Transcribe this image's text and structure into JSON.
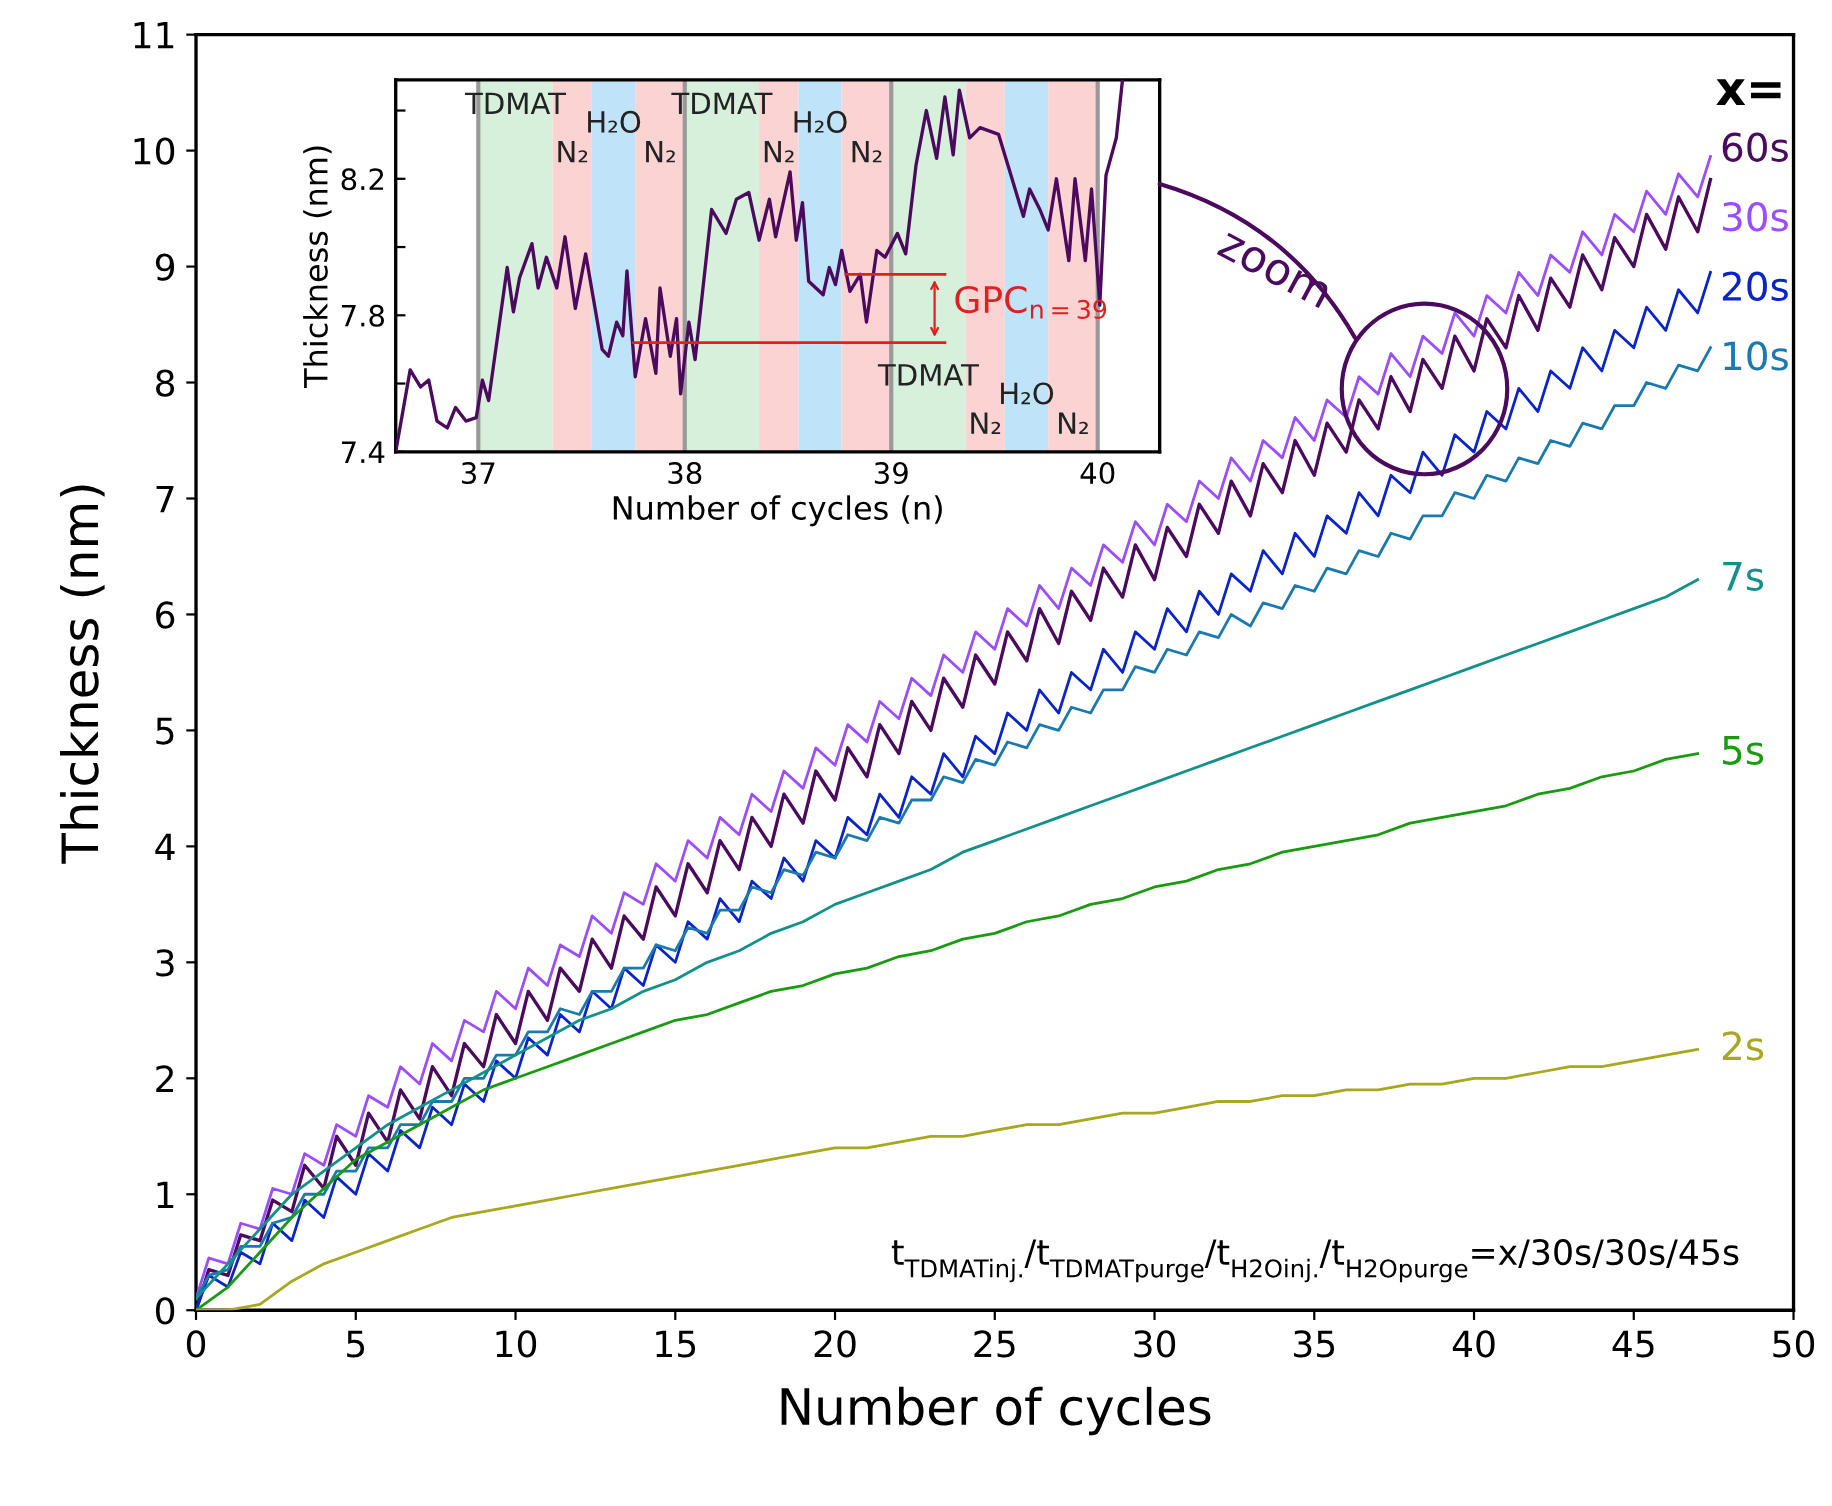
{
  "chart_data": [
    {
      "type": "line",
      "xlabel": "Number of cycles",
      "ylabel": "Thickness (nm)",
      "xlim": [
        0,
        50
      ],
      "ylim": [
        0,
        11
      ],
      "xticks": [
        0,
        5,
        10,
        15,
        20,
        25,
        30,
        35,
        40,
        45,
        50
      ],
      "yticks": [
        0,
        1,
        2,
        3,
        4,
        5,
        6,
        7,
        8,
        9,
        10,
        11
      ],
      "legend": false,
      "grid": false,
      "annotations": [
        "x=",
        "t$_{TDMATinj.}$/t$_{TDMATpurge}$/t$_{H2Oinj.}$/t$_{H2Opurge}$=x/30s/30s/45s",
        "zoom"
      ],
      "series": [
        {
          "name": "60s",
          "color": "#4b0a5e",
          "x": [
            0,
            0.4,
            1,
            1.4,
            2,
            2.4,
            3,
            3.4,
            4,
            4.4,
            5,
            5.4,
            6,
            6.4,
            7,
            7.4,
            8,
            8.4,
            9,
            9.4,
            10,
            10.4,
            11,
            11.4,
            12,
            12.4,
            13,
            13.4,
            14,
            14.4,
            15,
            15.4,
            16,
            16.4,
            17,
            17.4,
            18,
            18.4,
            19,
            19.4,
            20,
            20.4,
            21,
            21.4,
            22,
            22.4,
            23,
            23.4,
            24,
            24.4,
            25,
            25.4,
            26,
            26.4,
            27,
            27.4,
            28,
            28.4,
            29,
            29.4,
            30,
            30.4,
            31,
            31.4,
            32,
            32.4,
            33,
            33.4,
            34,
            34.4,
            35,
            35.4,
            36,
            36.4,
            37,
            37.4,
            38,
            38.4,
            39,
            39.4,
            40,
            40.4,
            41,
            41.4,
            42,
            42.4,
            43,
            43.4,
            44,
            44.4,
            45,
            45.4,
            46,
            46.4,
            47,
            47.4
          ],
          "values": [
            0,
            0.35,
            0.3,
            0.65,
            0.6,
            0.95,
            0.85,
            1.25,
            1.05,
            1.5,
            1.25,
            1.7,
            1.45,
            1.9,
            1.65,
            2.1,
            1.85,
            2.3,
            2.1,
            2.55,
            2.3,
            2.75,
            2.5,
            2.95,
            2.75,
            3.2,
            2.95,
            3.4,
            3.2,
            3.65,
            3.4,
            3.85,
            3.6,
            4.05,
            3.8,
            4.25,
            4.0,
            4.45,
            4.2,
            4.65,
            4.4,
            4.85,
            4.6,
            5.05,
            4.8,
            5.25,
            5.0,
            5.45,
            5.2,
            5.65,
            5.4,
            5.85,
            5.6,
            6.05,
            5.75,
            6.2,
            5.95,
            6.4,
            6.15,
            6.6,
            6.3,
            6.75,
            6.5,
            6.95,
            6.7,
            7.15,
            6.85,
            7.3,
            7.05,
            7.5,
            7.2,
            7.65,
            7.4,
            7.85,
            7.6,
            8.05,
            7.75,
            8.2,
            7.95,
            8.4,
            8.1,
            8.55,
            8.3,
            8.75,
            8.45,
            8.9,
            8.65,
            9.1,
            8.8,
            9.25,
            9.0,
            9.45,
            9.15,
            9.6,
            9.3,
            9.75
          ]
        },
        {
          "name": "30s",
          "color": "#9b4dff",
          "x": [
            0,
            0.4,
            1,
            1.4,
            2,
            2.4,
            3,
            3.4,
            4,
            4.4,
            5,
            5.4,
            6,
            6.4,
            7,
            7.4,
            8,
            8.4,
            9,
            9.4,
            10,
            10.4,
            11,
            11.4,
            12,
            12.4,
            13,
            13.4,
            14,
            14.4,
            15,
            15.4,
            16,
            16.4,
            17,
            17.4,
            18,
            18.4,
            19,
            19.4,
            20,
            20.4,
            21,
            21.4,
            22,
            22.4,
            23,
            23.4,
            24,
            24.4,
            25,
            25.4,
            26,
            26.4,
            27,
            27.4,
            28,
            28.4,
            29,
            29.4,
            30,
            30.4,
            31,
            31.4,
            32,
            32.4,
            33,
            33.4,
            34,
            34.4,
            35,
            35.4,
            36,
            36.4,
            37,
            37.4,
            38,
            38.4,
            39,
            39.4,
            40,
            40.4,
            41,
            41.4,
            42,
            42.4,
            43,
            43.4,
            44,
            44.4,
            45,
            45.4,
            46,
            46.4,
            47,
            47.4
          ],
          "values": [
            0.1,
            0.45,
            0.4,
            0.75,
            0.7,
            1.05,
            1.0,
            1.35,
            1.25,
            1.6,
            1.5,
            1.85,
            1.75,
            2.1,
            1.95,
            2.3,
            2.15,
            2.5,
            2.4,
            2.75,
            2.6,
            2.95,
            2.8,
            3.15,
            3.05,
            3.4,
            3.25,
            3.6,
            3.5,
            3.85,
            3.7,
            4.05,
            3.9,
            4.25,
            4.1,
            4.45,
            4.3,
            4.65,
            4.5,
            4.85,
            4.7,
            5.05,
            4.9,
            5.25,
            5.1,
            5.45,
            5.3,
            5.65,
            5.5,
            5.85,
            5.7,
            6.05,
            5.9,
            6.25,
            6.05,
            6.4,
            6.25,
            6.6,
            6.45,
            6.8,
            6.6,
            6.95,
            6.8,
            7.15,
            7.0,
            7.35,
            7.15,
            7.5,
            7.35,
            7.7,
            7.5,
            7.85,
            7.7,
            8.05,
            7.9,
            8.25,
            8.05,
            8.4,
            8.25,
            8.6,
            8.4,
            8.75,
            8.6,
            8.95,
            8.75,
            9.1,
            8.95,
            9.3,
            9.1,
            9.45,
            9.3,
            9.65,
            9.45,
            9.8,
            9.6,
            9.95
          ]
        },
        {
          "name": "20s",
          "color": "#0a24c8",
          "x": [
            0,
            0.4,
            1,
            1.4,
            2,
            2.4,
            3,
            3.4,
            4,
            4.4,
            5,
            5.4,
            6,
            6.4,
            7,
            7.4,
            8,
            8.4,
            9,
            9.4,
            10,
            10.4,
            11,
            11.4,
            12,
            12.4,
            13,
            13.4,
            14,
            14.4,
            15,
            15.4,
            16,
            16.4,
            17,
            17.4,
            18,
            18.4,
            19,
            19.4,
            20,
            20.4,
            21,
            21.4,
            22,
            22.4,
            23,
            23.4,
            24,
            24.4,
            25,
            25.4,
            26,
            26.4,
            27,
            27.4,
            28,
            28.4,
            29,
            29.4,
            30,
            30.4,
            31,
            31.4,
            32,
            32.4,
            33,
            33.4,
            34,
            34.4,
            35,
            35.4,
            36,
            36.4,
            37,
            37.4,
            38,
            38.4,
            39,
            39.4,
            40,
            40.4,
            41,
            41.4,
            42,
            42.4,
            43,
            43.4,
            44,
            44.4,
            45,
            45.4,
            46,
            46.4,
            47,
            47.4
          ],
          "values": [
            0,
            0.3,
            0.2,
            0.5,
            0.4,
            0.75,
            0.6,
            0.95,
            0.8,
            1.15,
            1.0,
            1.35,
            1.2,
            1.55,
            1.4,
            1.75,
            1.6,
            1.95,
            1.8,
            2.15,
            2.0,
            2.35,
            2.2,
            2.55,
            2.4,
            2.75,
            2.6,
            2.95,
            2.8,
            3.15,
            3.0,
            3.35,
            3.2,
            3.55,
            3.35,
            3.7,
            3.55,
            3.9,
            3.7,
            4.05,
            3.9,
            4.25,
            4.1,
            4.45,
            4.25,
            4.6,
            4.45,
            4.8,
            4.6,
            4.95,
            4.8,
            5.15,
            5.0,
            5.35,
            5.15,
            5.5,
            5.35,
            5.7,
            5.5,
            5.85,
            5.7,
            6.05,
            5.85,
            6.2,
            6.0,
            6.35,
            6.2,
            6.55,
            6.35,
            6.7,
            6.5,
            6.85,
            6.7,
            7.05,
            6.85,
            7.2,
            7.05,
            7.4,
            7.2,
            7.55,
            7.4,
            7.75,
            7.6,
            7.95,
            7.75,
            8.1,
            7.95,
            8.3,
            8.1,
            8.45,
            8.3,
            8.65,
            8.45,
            8.8,
            8.6,
            8.95
          ]
        },
        {
          "name": "10s",
          "color": "#1a7ab0",
          "x": [
            0,
            0.4,
            1,
            1.4,
            2,
            2.4,
            3,
            3.4,
            4,
            4.4,
            5,
            5.4,
            6,
            6.4,
            7,
            7.4,
            8,
            8.4,
            9,
            9.4,
            10,
            10.4,
            11,
            11.4,
            12,
            12.4,
            13,
            13.4,
            14,
            14.4,
            15,
            15.4,
            16,
            16.4,
            17,
            17.4,
            18,
            18.4,
            19,
            19.4,
            20,
            20.4,
            21,
            21.4,
            22,
            22.4,
            23,
            23.4,
            24,
            24.4,
            25,
            25.4,
            26,
            26.4,
            27,
            27.4,
            28,
            28.4,
            29,
            29.4,
            30,
            30.4,
            31,
            31.4,
            32,
            32.4,
            33,
            33.4,
            34,
            34.4,
            35,
            35.4,
            36,
            36.4,
            37,
            37.4,
            38,
            38.4,
            39,
            39.4,
            40,
            40.4,
            41,
            41.4,
            42,
            42.4,
            43,
            43.4,
            44,
            44.4,
            45,
            45.4,
            46,
            46.4,
            47,
            47.4
          ],
          "values": [
            0.1,
            0.3,
            0.35,
            0.55,
            0.55,
            0.75,
            0.8,
            1.0,
            1.0,
            1.2,
            1.2,
            1.4,
            1.4,
            1.6,
            1.6,
            1.8,
            1.8,
            2.0,
            2.0,
            2.2,
            2.2,
            2.4,
            2.4,
            2.6,
            2.55,
            2.75,
            2.75,
            2.95,
            2.95,
            3.15,
            3.1,
            3.3,
            3.25,
            3.45,
            3.45,
            3.65,
            3.6,
            3.8,
            3.75,
            3.95,
            3.9,
            4.1,
            4.05,
            4.25,
            4.2,
            4.4,
            4.4,
            4.6,
            4.55,
            4.75,
            4.7,
            4.9,
            4.85,
            5.05,
            5.0,
            5.2,
            5.15,
            5.35,
            5.35,
            5.55,
            5.5,
            5.7,
            5.65,
            5.85,
            5.8,
            6.0,
            5.9,
            6.1,
            6.05,
            6.25,
            6.2,
            6.4,
            6.35,
            6.55,
            6.5,
            6.7,
            6.65,
            6.85,
            6.85,
            7.05,
            7.0,
            7.2,
            7.15,
            7.35,
            7.3,
            7.5,
            7.45,
            7.65,
            7.6,
            7.8,
            7.8,
            8.0,
            7.95,
            8.15,
            8.1,
            8.3
          ]
        },
        {
          "name": "7s",
          "color": "#12908a",
          "x": [
            0,
            1,
            2,
            3,
            4,
            5,
            6,
            7,
            8,
            9,
            10,
            11,
            12,
            13,
            14,
            15,
            16,
            17,
            18,
            19,
            20,
            21,
            22,
            23,
            24,
            25,
            26,
            27,
            28,
            29,
            30,
            31,
            32,
            33,
            34,
            35,
            36,
            37,
            38,
            39,
            40,
            41,
            42,
            43,
            44,
            45,
            46,
            47
          ],
          "values": [
            0.1,
            0.4,
            0.7,
            1.0,
            1.2,
            1.4,
            1.6,
            1.75,
            1.9,
            2.05,
            2.2,
            2.35,
            2.5,
            2.6,
            2.75,
            2.85,
            3.0,
            3.1,
            3.25,
            3.35,
            3.5,
            3.6,
            3.7,
            3.8,
            3.95,
            4.05,
            4.15,
            4.25,
            4.35,
            4.45,
            4.55,
            4.65,
            4.75,
            4.85,
            4.95,
            5.05,
            5.15,
            5.25,
            5.35,
            5.45,
            5.55,
            5.65,
            5.75,
            5.85,
            5.95,
            6.05,
            6.15,
            6.3
          ]
        },
        {
          "name": "5s",
          "color": "#1a9a10",
          "x": [
            0,
            1,
            2,
            3,
            4,
            5,
            6,
            7,
            8,
            9,
            10,
            11,
            12,
            13,
            14,
            15,
            16,
            17,
            18,
            19,
            20,
            21,
            22,
            23,
            24,
            25,
            26,
            27,
            28,
            29,
            30,
            31,
            32,
            33,
            34,
            35,
            36,
            37,
            38,
            39,
            40,
            41,
            42,
            43,
            44,
            45,
            46,
            47
          ],
          "values": [
            0,
            0.2,
            0.5,
            0.8,
            1.05,
            1.3,
            1.45,
            1.6,
            1.75,
            1.9,
            2.0,
            2.1,
            2.2,
            2.3,
            2.4,
            2.5,
            2.55,
            2.65,
            2.75,
            2.8,
            2.9,
            2.95,
            3.05,
            3.1,
            3.2,
            3.25,
            3.35,
            3.4,
            3.5,
            3.55,
            3.65,
            3.7,
            3.8,
            3.85,
            3.95,
            4.0,
            4.05,
            4.1,
            4.2,
            4.25,
            4.3,
            4.35,
            4.45,
            4.5,
            4.6,
            4.65,
            4.75,
            4.8
          ]
        },
        {
          "name": "2s",
          "color": "#a8a820",
          "x": [
            0,
            1,
            2,
            3,
            4,
            5,
            6,
            7,
            8,
            9,
            10,
            11,
            12,
            13,
            14,
            15,
            16,
            17,
            18,
            19,
            20,
            21,
            22,
            23,
            24,
            25,
            26,
            27,
            28,
            29,
            30,
            31,
            32,
            33,
            34,
            35,
            36,
            37,
            38,
            39,
            40,
            41,
            42,
            43,
            44,
            45,
            46,
            47
          ],
          "values": [
            0,
            0,
            0.05,
            0.25,
            0.4,
            0.5,
            0.6,
            0.7,
            0.8,
            0.85,
            0.9,
            0.95,
            1.0,
            1.05,
            1.1,
            1.15,
            1.2,
            1.25,
            1.3,
            1.35,
            1.4,
            1.4,
            1.45,
            1.5,
            1.5,
            1.55,
            1.6,
            1.6,
            1.65,
            1.7,
            1.7,
            1.75,
            1.8,
            1.8,
            1.85,
            1.85,
            1.9,
            1.9,
            1.95,
            1.95,
            2.0,
            2.0,
            2.05,
            2.1,
            2.1,
            2.15,
            2.2,
            2.25
          ]
        }
      ]
    },
    {
      "type": "line",
      "xlabel": "Number of cycles (n)",
      "ylabel": "Thickness (nm)",
      "xlim": [
        36.6,
        40.3
      ],
      "ylim": [
        7.4,
        8.49
      ],
      "xticks": [
        37,
        38,
        39,
        40
      ],
      "yticks": [
        7.4,
        {
          "value": 7.6,
          "label": null
        },
        7.8,
        {
          "value": 8.0,
          "label": null
        },
        8.2,
        {
          "value": 8.4,
          "label": null
        }
      ],
      "legend": false,
      "grid": false,
      "bands": [
        {
          "axis": "x",
          "from": 37,
          "to": 37.36,
          "color": "#d6f0dc",
          "label": "TDMAT"
        },
        {
          "axis": "x",
          "from": 37.36,
          "to": 37.55,
          "color": "#fbd3d3",
          "label": "N₂"
        },
        {
          "axis": "x",
          "from": 37.55,
          "to": 37.76,
          "color": "#bfe3f8",
          "label": "H₂O"
        },
        {
          "axis": "x",
          "from": 37.76,
          "to": 38,
          "color": "#fbd3d3",
          "label": "N₂"
        },
        {
          "axis": "x",
          "from": 38,
          "to": 38.36,
          "color": "#d6f0dc",
          "label": "TDMAT"
        },
        {
          "axis": "x",
          "from": 38.36,
          "to": 38.55,
          "color": "#fbd3d3",
          "label": "N₂"
        },
        {
          "axis": "x",
          "from": 38.55,
          "to": 38.76,
          "color": "#bfe3f8",
          "label": "H₂O"
        },
        {
          "axis": "x",
          "from": 38.76,
          "to": 39,
          "color": "#fbd3d3",
          "label": "N₂"
        },
        {
          "axis": "x",
          "from": 39,
          "to": 39.36,
          "color": "#d6f0dc",
          "label": "TDMAT"
        },
        {
          "axis": "x",
          "from": 39.36,
          "to": 39.55,
          "color": "#fbd3d3",
          "label": "N₂"
        },
        {
          "axis": "x",
          "from": 39.55,
          "to": 39.76,
          "color": "#bfe3f8",
          "label": "H₂O"
        },
        {
          "axis": "x",
          "from": 39.76,
          "to": 40,
          "color": "#fbd3d3",
          "label": "N₂"
        }
      ],
      "ref_lines": [
        {
          "axis": "x",
          "value": 37,
          "color": "#999999"
        },
        {
          "axis": "x",
          "value": 38,
          "color": "#999999"
        },
        {
          "axis": "x",
          "value": 39,
          "color": "#999999"
        },
        {
          "axis": "x",
          "value": 40,
          "color": "#999999"
        }
      ],
      "annotations": [
        "GPC$_{n=39}$"
      ],
      "series": [
        {
          "color": "#4b0a5e",
          "x": [
            36.6,
            36.67,
            36.72,
            36.76,
            36.8,
            36.85,
            36.89,
            36.94,
            36.99,
            37.02,
            37.05,
            37.14,
            37.17,
            37.2,
            37.26,
            37.29,
            37.33,
            37.38,
            37.42,
            37.47,
            37.52,
            37.6,
            37.63,
            37.67,
            37.7,
            37.72,
            37.76,
            37.81,
            37.86,
            37.88,
            37.93,
            37.96,
            37.98,
            38.02,
            38.05,
            38.13,
            38.2,
            38.25,
            38.31,
            38.36,
            38.41,
            38.44,
            38.51,
            38.54,
            38.57,
            38.6,
            38.67,
            38.7,
            38.73,
            38.76,
            38.8,
            38.85,
            38.88,
            38.93,
            38.97,
            39.03,
            39.07,
            39.12,
            39.17,
            39.22,
            39.26,
            39.3,
            39.33,
            39.38,
            39.43,
            39.52,
            39.57,
            39.64,
            39.67,
            39.72,
            39.76,
            39.8,
            39.86,
            39.89,
            39.94,
            39.97,
            40.01,
            40.04,
            40.09,
            40.12
          ],
          "values": [
            7.4,
            7.64,
            7.59,
            7.61,
            7.49,
            7.47,
            7.53,
            7.49,
            7.5,
            7.61,
            7.55,
            7.94,
            7.81,
            7.91,
            8.01,
            7.88,
            7.97,
            7.88,
            8.03,
            7.82,
            7.98,
            7.7,
            7.68,
            7.78,
            7.74,
            7.93,
            7.62,
            7.79,
            7.63,
            7.88,
            7.68,
            7.79,
            7.57,
            7.78,
            7.67,
            8.11,
            8.04,
            8.14,
            8.16,
            8.02,
            8.14,
            8.03,
            8.22,
            8.02,
            8.13,
            7.9,
            7.86,
            7.94,
            7.89,
            7.99,
            7.87,
            7.92,
            7.78,
            7.99,
            7.97,
            8.04,
            7.98,
            8.24,
            8.4,
            8.26,
            8.44,
            8.27,
            8.46,
            8.32,
            8.35,
            8.33,
            8.23,
            8.09,
            8.17,
            8.11,
            8.05,
            8.2,
            7.96,
            8.2,
            7.96,
            8.17,
            7.83,
            8.21,
            8.32,
            8.49
          ]
        },
        {
          "color": "#e02020",
          "x": [
            38.78,
            39.26
          ],
          "values": [
            7.92,
            7.92
          ]
        },
        {
          "color": "#e02020",
          "x": [
            37.75,
            39.26
          ],
          "values": [
            7.72,
            7.72
          ]
        }
      ]
    }
  ]
}
